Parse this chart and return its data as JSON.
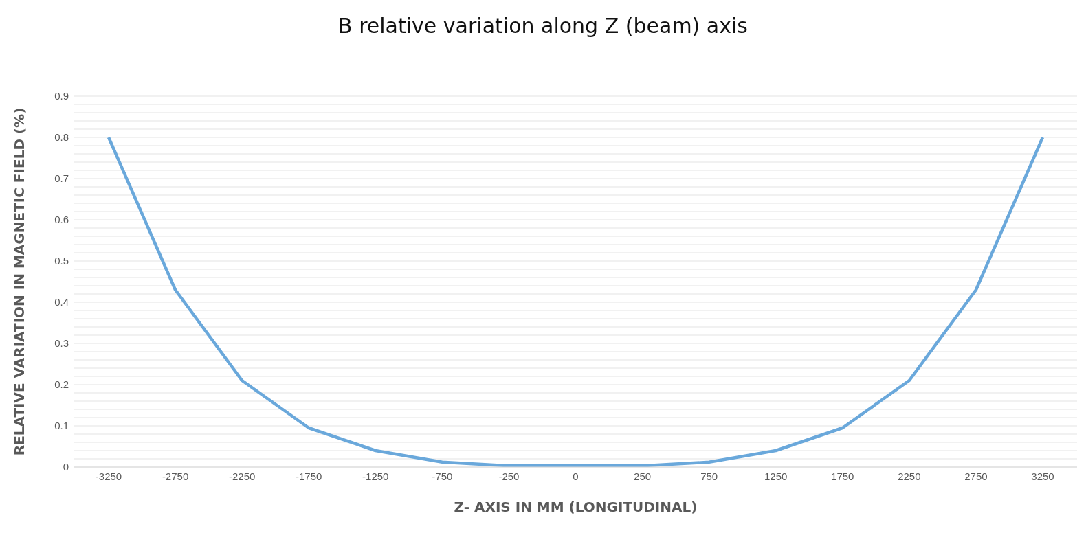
{
  "chart_data": {
    "type": "line",
    "title": "B relative variation along Z (beam) axis",
    "xlabel": "Z- AXIS IN MM (LONGITUDINAL)",
    "ylabel": "RELATIVE VARIATION IN MAGNETIC FIELD (%)",
    "categories": [
      "-3250",
      "-2750",
      "-2250",
      "-1750",
      "-1250",
      "-750",
      "-250",
      "0",
      "250",
      "750",
      "1250",
      "1750",
      "2250",
      "2750",
      "3250"
    ],
    "series": [
      {
        "color": "#6aa8db",
        "values": [
          0.8,
          0.43,
          0.21,
          0.095,
          0.04,
          0.012,
          0.003,
          0.003,
          0.003,
          0.012,
          0.04,
          0.095,
          0.21,
          0.43,
          0.8
        ]
      }
    ],
    "ylim": [
      0,
      0.9
    ],
    "yticks": [
      0,
      {
        "value": 0.02,
        "label": null
      },
      {
        "value": 0.04,
        "label": null
      },
      {
        "value": 0.06,
        "label": null
      },
      {
        "value": 0.08,
        "label": null
      },
      0.1,
      {
        "value": 0.12,
        "label": null
      },
      {
        "value": 0.14,
        "label": null
      },
      {
        "value": 0.16,
        "label": null
      },
      {
        "value": 0.18,
        "label": null
      },
      0.2,
      {
        "value": 0.22,
        "label": null
      },
      {
        "value": 0.24,
        "label": null
      },
      {
        "value": 0.26,
        "label": null
      },
      {
        "value": 0.28,
        "label": null
      },
      0.3,
      {
        "value": 0.32,
        "label": null
      },
      {
        "value": 0.34,
        "label": null
      },
      {
        "value": 0.36,
        "label": null
      },
      {
        "value": 0.38,
        "label": null
      },
      0.4,
      {
        "value": 0.42,
        "label": null
      },
      {
        "value": 0.44,
        "label": null
      },
      {
        "value": 0.46,
        "label": null
      },
      {
        "value": 0.48,
        "label": null
      },
      0.5,
      {
        "value": 0.52,
        "label": null
      },
      {
        "value": 0.54,
        "label": null
      },
      {
        "value": 0.56,
        "label": null
      },
      {
        "value": 0.58,
        "label": null
      },
      0.6,
      {
        "value": 0.62,
        "label": null
      },
      {
        "value": 0.64,
        "label": null
      },
      {
        "value": 0.66,
        "label": null
      },
      {
        "value": 0.68,
        "label": null
      },
      0.7,
      {
        "value": 0.72,
        "label": null
      },
      {
        "value": 0.74,
        "label": null
      },
      {
        "value": 0.76,
        "label": null
      },
      {
        "value": 0.78,
        "label": null
      },
      0.8,
      {
        "value": 0.82,
        "label": null
      },
      {
        "value": 0.84,
        "label": null
      },
      {
        "value": 0.86,
        "label": null
      },
      {
        "value": 0.88,
        "label": null
      },
      0.9
    ],
    "grid": "y",
    "marker": "none",
    "line_style": "solid",
    "legend": false
  }
}
